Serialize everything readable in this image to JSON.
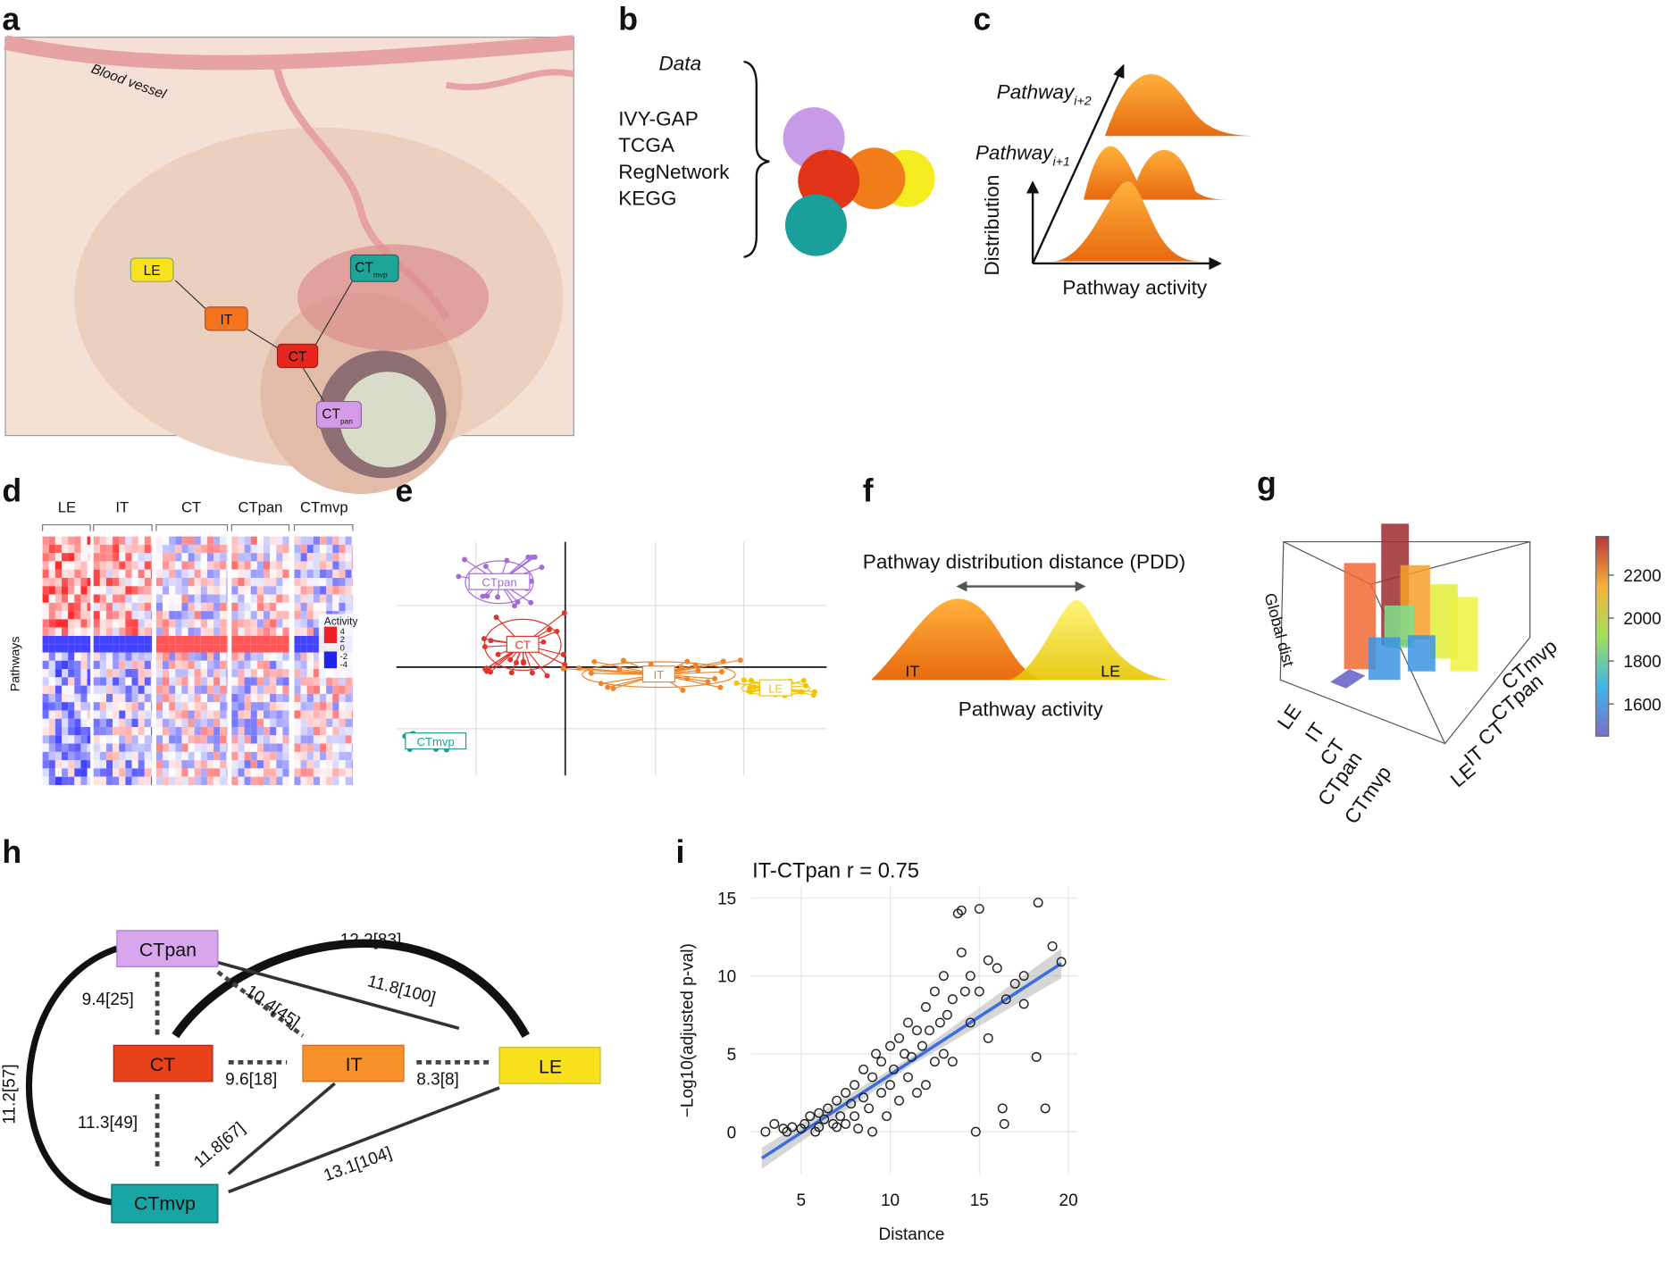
{
  "panels": {
    "a": "a",
    "b": "b",
    "c": "c",
    "d": "d",
    "e": "e",
    "f": "f",
    "g": "g",
    "h": "h",
    "i": "i"
  },
  "a": {
    "vessel": "Blood vessel",
    "nodes": [
      {
        "label": "LE"
      },
      {
        "label": "IT"
      },
      {
        "label": "CT"
      },
      {
        "label": "CT",
        "sub": "mvp"
      },
      {
        "label": "CT",
        "sub": "pan"
      }
    ]
  },
  "b": {
    "title": "Data",
    "sources": [
      "IVY-GAP",
      "TCGA",
      "RegNetwork",
      "KEGG"
    ]
  },
  "c": {
    "pathway2": {
      "label": "Pathway",
      "sub": "i+2"
    },
    "pathway1": {
      "label": "Pathway",
      "sub": "i+1"
    },
    "y_label": "Distribution",
    "x_label": "Pathway activity"
  },
  "d": {
    "columns": [
      "LE",
      "IT",
      "CT",
      "CTpan",
      "CTmvp"
    ],
    "y_label": "Pathways",
    "legend": {
      "title": "Activity",
      "lim": [
        -5,
        5
      ],
      "ticks": [
        4,
        2,
        0,
        -2,
        -4
      ]
    }
  },
  "e": {
    "groups": [
      "CTpan",
      "CT",
      "IT",
      "LE",
      "CTmvp"
    ]
  },
  "f": {
    "title": "Pathway distribution distance (PDD)",
    "left": "IT",
    "right": "LE",
    "x_label": "Pathway activity"
  },
  "g": {
    "z_label": "Global dist",
    "axis1": [
      "LE",
      "IT",
      "CT",
      "CTpan",
      "CTmvp"
    ],
    "axis2": [
      "CTmvp",
      "CTpan",
      "CT",
      "IT",
      "LE"
    ],
    "colorbar": {
      "lim": [
        1450,
        2380
      ],
      "ticks": [
        1600,
        1800,
        2000,
        2200
      ]
    }
  },
  "h": {
    "nodes": [
      "CTpan",
      "CT",
      "IT",
      "LE",
      "CTmvp"
    ],
    "edges": [
      "12.2[83]",
      "9.4[25]",
      "10.4[45]",
      "11.8[100]",
      "9.6[18]",
      "8.3[8]",
      "11.2[57]",
      "11.3[49]",
      "11.8[67]",
      "13.1[104]"
    ]
  },
  "chart_data": {
    "type": "scatter",
    "title": "IT-CTpan r = 0.75",
    "x_label": "Distance",
    "y_label": "−Log10(adjusted p-val)",
    "xlim": [
      2.2,
      20.5
    ],
    "ylim": [
      -2.7,
      15.7
    ],
    "xticks": [
      5,
      10,
      15,
      20
    ],
    "yticks": [
      0,
      5,
      10,
      15
    ],
    "grid": true,
    "color": "#222222",
    "fit_color": "#3b6fe0",
    "x": [
      3,
      3.5,
      4,
      4.2,
      4.5,
      5,
      5.2,
      5.5,
      5.8,
      6,
      6,
      6.3,
      6.5,
      6.8,
      7,
      7,
      7.2,
      7.5,
      7.5,
      7.8,
      8,
      8,
      8.2,
      8.5,
      8.5,
      8.8,
      9,
      9,
      9.2,
      9.5,
      9.5,
      9.8,
      10,
      10,
      10.2,
      10.5,
      10.5,
      10.8,
      11,
      11,
      11.2,
      11.5,
      11.5,
      11.8,
      12,
      12,
      12.2,
      12.5,
      12.5,
      12.8,
      13,
      13,
      13.2,
      13.5,
      13.5,
      13.8,
      14,
      14,
      14.2,
      14.5,
      14.5,
      14.8,
      15,
      15,
      15.5,
      15.5,
      16,
      16.5,
      17,
      17.5,
      17.5,
      18.3,
      18.2,
      18.7,
      16.3,
      16.4,
      19.1,
      19.6
    ],
    "y": [
      0,
      0.5,
      0.2,
      0,
      0.3,
      0.2,
      0.5,
      1,
      0,
      0.3,
      1.2,
      0.8,
      1.5,
      0.5,
      2,
      0.3,
      1,
      2.5,
      0.5,
      1.8,
      3,
      1,
      0.2,
      2.2,
      4,
      1.5,
      0,
      3.5,
      5,
      2.5,
      4.5,
      1,
      3,
      5.5,
      4,
      6,
      2,
      5,
      7,
      3.5,
      4.8,
      6.5,
      2.5,
      5.5,
      8,
      3,
      6.5,
      4.5,
      9,
      7,
      5,
      10,
      7.5,
      8.5,
      4.5,
      14,
      14.2,
      11.5,
      9,
      7,
      10,
      0,
      14.3,
      9,
      6,
      11,
      10.5,
      8.5,
      9.5,
      10,
      8.2,
      14.7,
      4.8,
      1.5,
      1.5,
      0.5,
      11.9,
      10.9
    ],
    "fit": {
      "x": [
        2.8,
        19.6
      ],
      "y": [
        -1.7,
        10.8
      ]
    }
  }
}
